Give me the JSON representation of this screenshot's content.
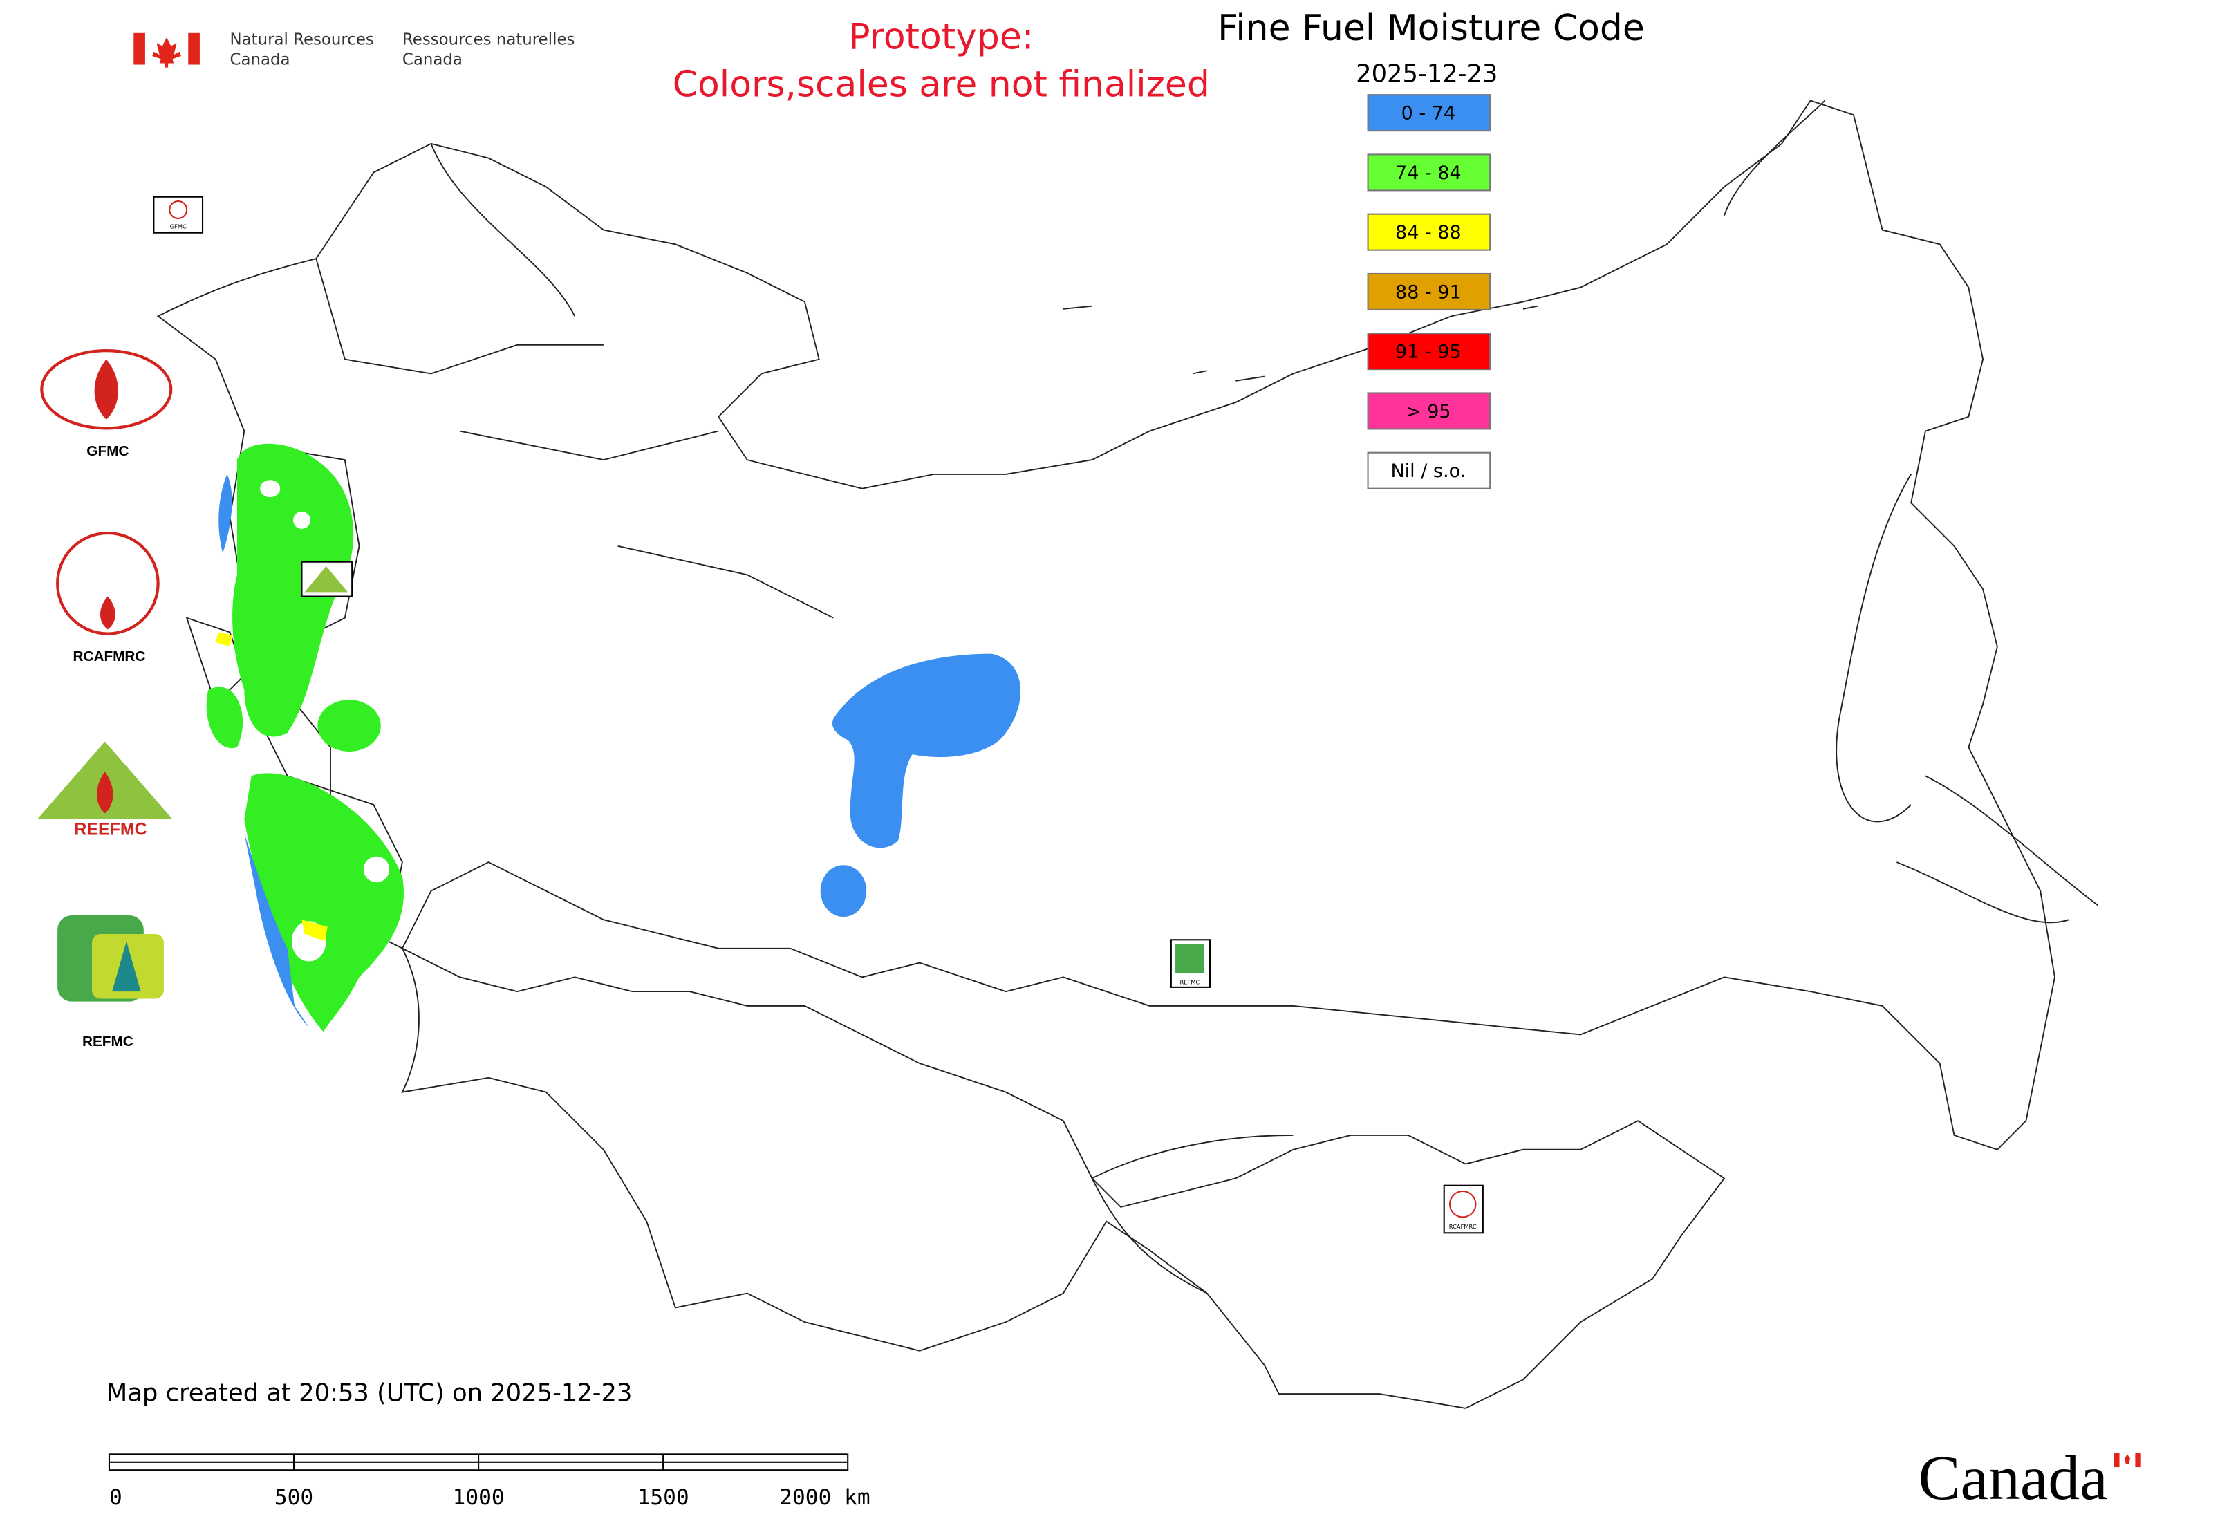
{
  "header": {
    "dept_en_line1": "Natural Resources",
    "dept_en_line2": "Canada",
    "dept_fr_line1": "Ressources naturelles",
    "dept_fr_line2": "Canada"
  },
  "notice": {
    "line1": "Prototype:",
    "line2": "Colors,scales are not finalized"
  },
  "title": "Fine Fuel Moisture Code",
  "date": "2025-12-23",
  "legend": [
    {
      "label": "0 - 74",
      "color": "#3a8ff0"
    },
    {
      "label": "74 - 84",
      "color": "#66ff33"
    },
    {
      "label": "84 - 88",
      "color": "#ffff00"
    },
    {
      "label": "88 - 91",
      "color": "#e0a000"
    },
    {
      "label": "91 - 95",
      "color": "#ff0000"
    },
    {
      "label": "> 95",
      "color": "#ff3399"
    },
    {
      "label": "Nil / s.o.",
      "color": "#ffffff"
    }
  ],
  "logos": [
    "GFMC",
    "RCAFMRC",
    "REEFMC",
    "REFMC"
  ],
  "footer": {
    "created": "Map created at 20:53 (UTC) on 2025-12-23",
    "scale_labels": [
      "0",
      "500",
      "1000",
      "1500",
      "2000 km"
    ],
    "wordmark": "Canada"
  }
}
